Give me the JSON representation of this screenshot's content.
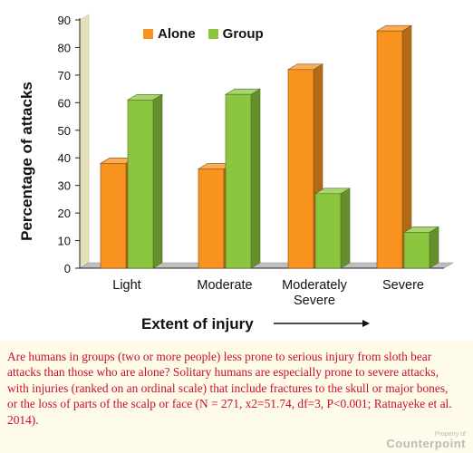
{
  "chart_data": {
    "type": "bar",
    "style": "3d-clustered",
    "categories": [
      "Light",
      "Moderate",
      "Moderately Severe",
      "Severe"
    ],
    "category_lines": [
      [
        "Light"
      ],
      [
        "Moderate"
      ],
      [
        "Moderately",
        "Severe"
      ],
      [
        "Severe"
      ]
    ],
    "series": [
      {
        "name": "Alone",
        "values": [
          38,
          36,
          72,
          86
        ],
        "color": "#f7931e"
      },
      {
        "name": "Group",
        "values": [
          61,
          63,
          27,
          13
        ],
        "color": "#8cc63f"
      }
    ],
    "ylabel": "Percentage of attacks",
    "xlabel": "Extent of injury",
    "ylim": [
      0,
      90
    ],
    "yticks": [
      0,
      10,
      20,
      30,
      40,
      50,
      60,
      70,
      80,
      90
    ],
    "legend_position": "top-left",
    "grid": false
  },
  "caption": "Are humans in groups (two or more people) less prone to serious injury from sloth bear attacks than those who are alone? Solitary humans are especially prone to severe attacks, with injuries (ranked on an ordinal scale) that include fractures to the skull or major bones, or the loss of parts of the scalp or face (N = 271, x2=51.74, df=3, P<0.001; Ratnayeke et al. 2014).",
  "watermark": {
    "line1": "Property of",
    "line2": "Counterpoint"
  }
}
